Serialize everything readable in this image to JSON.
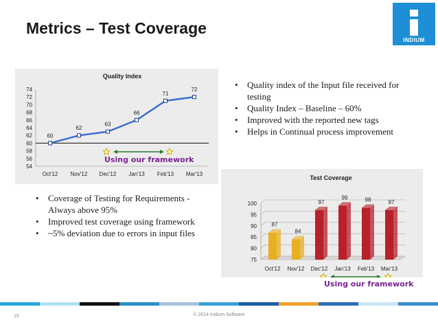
{
  "slide": {
    "title": "Metrics – Test Coverage",
    "page_number": "15",
    "copyright": "© 2014 Indium Software"
  },
  "logo": {
    "text": "INDIUM",
    "color": "#1e8fd6"
  },
  "quality_bullets": [
    "Quality index of the Input file received for testing",
    "Quality Index – Baseline – 60%",
    "Improved with the reported new tags",
    "Helps in Continual process improvement"
  ],
  "coverage_bullets": [
    "Coverage of Testing for Requirements - Always above 95%",
    "Improved test coverage using framework",
    "~5% deviation due to errors in input files"
  ],
  "annotations": {
    "quality_framework": "Using our framework",
    "coverage_framework": "Using our framework"
  },
  "footer_strip_colors": [
    "#2aa5dc",
    "#aee0f4",
    "#111111",
    "#2b8fca",
    "#a7c4e0",
    "#3aa0d8",
    "#1b5fa5",
    "#f0a030",
    "#2a70b8",
    "#c9e6f5",
    "#3a8fd0"
  ],
  "chart_data": [
    {
      "type": "line",
      "title": "Quality Index",
      "categories": [
        "Oct'12",
        "Nov'12",
        "Dec'12",
        "Jan'13",
        "Feb'13",
        "Mar'13"
      ],
      "series": [
        {
          "values": [
            60,
            62,
            63,
            66,
            71,
            72
          ],
          "color": "#3a6fd0"
        }
      ],
      "baseline": 60,
      "ylim": [
        54,
        74
      ],
      "yticks": [
        54,
        56,
        58,
        60,
        62,
        64,
        66,
        68,
        70,
        72,
        74
      ],
      "grid": false,
      "legend": "none"
    },
    {
      "type": "bar",
      "title": "Test Coverage",
      "categories": [
        "Oct'12",
        "Nov'12",
        "Dec'12",
        "Jan'13",
        "Feb'13",
        "Mar'13"
      ],
      "series": [
        {
          "values": [
            87,
            84,
            97,
            99,
            98,
            97
          ],
          "colors": [
            "#e8b020",
            "#e8b020",
            "#b8202a",
            "#b8202a",
            "#b8202a",
            "#b8202a"
          ]
        }
      ],
      "ylim": [
        75,
        100
      ],
      "yticks": [
        75,
        80,
        85,
        90,
        95,
        100
      ],
      "grid": true,
      "legend": "none"
    }
  ]
}
